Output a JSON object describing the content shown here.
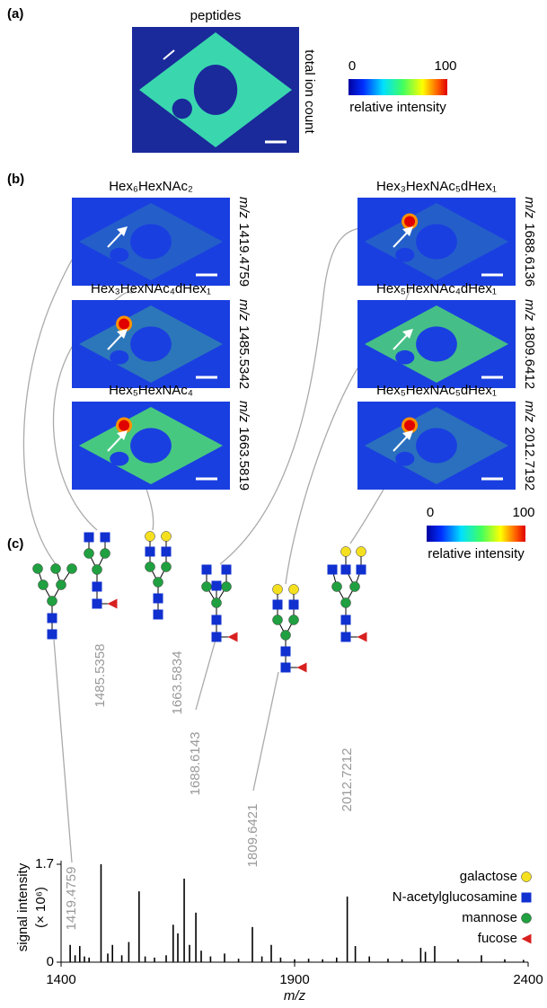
{
  "panel_a": {
    "label": "(a)",
    "title": "peptides",
    "side_label": "total ion count"
  },
  "colorbar": {
    "min": 0,
    "max": 100,
    "label": "relative intensity"
  },
  "panel_b": {
    "label": "(b)",
    "mz_symbol": "m/z",
    "images": [
      {
        "title": "Hex₆HexNAc₂",
        "mz": "1419.4759"
      },
      {
        "title": "Hex₃HexNAc₄dHex₁",
        "mz": "1485.5342"
      },
      {
        "title": "Hex₅HexNAc₄",
        "mz": "1663.5819"
      },
      {
        "title": "Hex₃HexNAc₅dHex₁",
        "mz": "1688.6136"
      },
      {
        "title": "Hex₅HexNAc₄dHex₁",
        "mz": "1809.6412"
      },
      {
        "title": "Hex₅HexNAc₅dHex₁",
        "mz": "2012.7192"
      }
    ]
  },
  "panel_c": {
    "label": "(c)"
  },
  "chart_data": {
    "type": "spectrum",
    "xlabel": "m/z",
    "ylabel": [
      "signal intensity",
      "(× 10⁶)"
    ],
    "x": [
      1419.4759,
      1430,
      1440,
      1450,
      1460,
      1485.5358,
      1500,
      1510,
      1530,
      1545,
      1567,
      1580,
      1600,
      1625,
      1640,
      1650,
      1663.5834,
      1675,
      1688.6143,
      1700,
      1720,
      1750,
      1780,
      1809.6421,
      1830,
      1850,
      1870,
      1900,
      1930,
      1960,
      1990,
      2012.7212,
      2030,
      2060,
      2100,
      2130,
      2170,
      2180,
      2200,
      2250,
      2300,
      2350,
      2390
    ],
    "values": [
      0.3,
      0.12,
      0.28,
      0.1,
      0.08,
      1.7,
      0.15,
      0.3,
      0.12,
      0.35,
      1.23,
      0.1,
      0.08,
      0.12,
      0.65,
      0.5,
      1.45,
      0.3,
      0.86,
      0.2,
      0.1,
      0.15,
      0.06,
      0.61,
      0.1,
      0.3,
      0.08,
      0.05,
      0.06,
      0.05,
      0.08,
      1.14,
      0.28,
      0.1,
      0.06,
      0.05,
      0.25,
      0.18,
      0.28,
      0.05,
      0.12,
      0.05,
      0.04
    ],
    "color": "#000000",
    "xlim": [
      1400,
      2400
    ],
    "xticks": [
      1400,
      1900,
      2400
    ],
    "ylim": [
      0,
      1.7
    ],
    "yticks": [
      0,
      1.7
    ],
    "peak_labels": [
      "1419.4759",
      "1485.5358",
      "1663.5834",
      "1688.6143",
      "1809.6421",
      "2012.7212"
    ],
    "peak_label_color": "#999999",
    "legend": [
      {
        "name": "galactose",
        "color": "#f5e020",
        "shape": "circle"
      },
      {
        "name": "N-acetylglucosamine",
        "color": "#1030d0",
        "shape": "square"
      },
      {
        "name": "mannose",
        "color": "#20a040",
        "shape": "circle"
      },
      {
        "name": "fucose",
        "color": "#d82020",
        "shape": "triangle"
      }
    ]
  }
}
